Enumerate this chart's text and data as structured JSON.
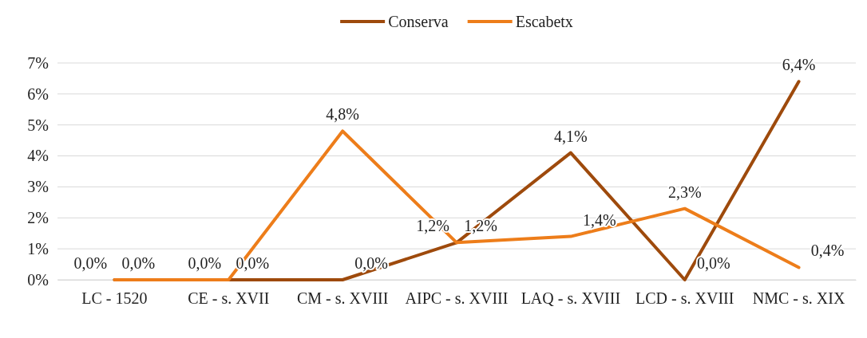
{
  "chart_data": {
    "type": "line",
    "categories": [
      "LC - 1520",
      "CE - s. XVII",
      "CM - s. XVIII",
      "AIPC - s. XVIII",
      "LAQ - s. XVIII",
      "LCD - s. XVIII",
      "NMC - s. XIX"
    ],
    "series": [
      {
        "name": "Conserva",
        "color": "#9e4a0c",
        "values": [
          0,
          0,
          0,
          1.2,
          4.1,
          0,
          6.4
        ],
        "value_labels": [
          "0,0%",
          "0,0%",
          "0,0%",
          "1,2%",
          "4,1%",
          "0,0%",
          "6,4%"
        ]
      },
      {
        "name": "Escabetx",
        "color": "#ed7d1a",
        "values": [
          0,
          0,
          4.8,
          1.2,
          1.4,
          2.3,
          0.4
        ],
        "value_labels": [
          "0,0%",
          "0,0%",
          "4,8%",
          "1,2%",
          "1,4%",
          "2,3%",
          "0,4%"
        ]
      }
    ],
    "ylim": [
      0,
      7
    ],
    "yticks": [
      {
        "value": 0,
        "label": "0%"
      },
      {
        "value": 1,
        "label": "1%"
      },
      {
        "value": 2,
        "label": "2%"
      },
      {
        "value": 3,
        "label": "3%"
      },
      {
        "value": 4,
        "label": "4%"
      },
      {
        "value": 5,
        "label": "5%"
      },
      {
        "value": 6,
        "label": "6%"
      },
      {
        "value": 7,
        "label": "7%"
      }
    ],
    "grid": "y",
    "legend": "top",
    "marker": "none",
    "line_style": "solid"
  }
}
